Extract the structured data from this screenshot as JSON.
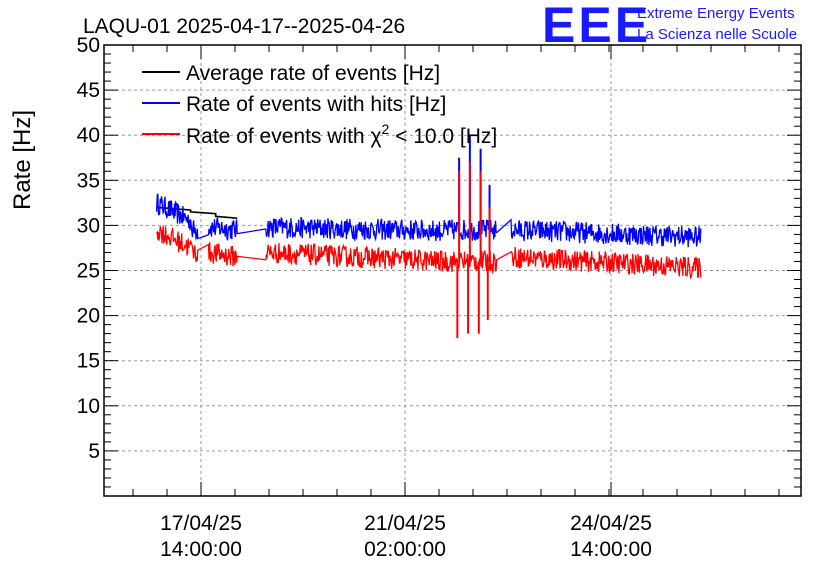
{
  "chart_data": {
    "type": "line",
    "title": "LAQU-01 2025-04-17--2025-04-26",
    "ylabel": "Rate [Hz]",
    "xlabel": "",
    "ylim": [
      0,
      50
    ],
    "y_ticks": [
      5,
      10,
      15,
      20,
      25,
      30,
      35,
      40,
      45,
      50
    ],
    "x_ticks": [
      {
        "label_top": "17/04/25",
        "label_bottom": "14:00:00"
      },
      {
        "label_top": "21/04/25",
        "label_bottom": "02:00:00"
      },
      {
        "label_top": "24/04/25",
        "label_bottom": "14:00:00"
      }
    ],
    "grid": true,
    "legend_position": "top-left",
    "legend": [
      {
        "label": "Average rate of events [Hz]",
        "color": "#000000"
      },
      {
        "label": "Rate of events with hits [Hz]",
        "color": "#0000ff"
      },
      {
        "label_prefix": "Rate of events with ",
        "label_symbol": "χ",
        "label_sup": "2",
        "label_suffix": " < 10.0 [Hz]",
        "color": "#ff0000"
      }
    ],
    "series": [
      {
        "name": "Average rate of events [Hz]",
        "color": "#000000",
        "segments": [
          {
            "x_start": 0.0,
            "x_end": 0.95,
            "value": 32.0,
            "trend": -0.3
          },
          {
            "x_start": 0.95,
            "x_end": 1.65,
            "value": 31.5,
            "trend": -0.2
          },
          {
            "x_start": 1.65,
            "x_end": 2.25,
            "value": 31.0,
            "trend": -0.2
          }
        ]
      },
      {
        "name": "Rate of events with hits [Hz]",
        "color": "#0000ff",
        "noise": 1.2,
        "segments": [
          {
            "x_start": 0.0,
            "x_end": 0.95,
            "value": 32.5,
            "trend": -2.0
          },
          {
            "x_start": 1.0,
            "x_end": 1.15,
            "value": 29.5,
            "trend": 0.0
          },
          {
            "x_start": 1.45,
            "x_end": 2.25,
            "value": 29.8,
            "trend": -0.3
          },
          {
            "x_start": 3.05,
            "x_end": 8.1,
            "value": 29.8,
            "trend": -0.4
          },
          {
            "x_start": 8.1,
            "x_end": 9.5,
            "value": 29.5,
            "trend": 0.0
          },
          {
            "x_start": 9.9,
            "x_end": 15.2,
            "value": 29.5,
            "trend": -0.8
          }
        ],
        "spikes": [
          {
            "x": 8.45,
            "value": 37.5
          },
          {
            "x": 8.75,
            "value": 40.0
          },
          {
            "x": 9.05,
            "value": 38.5
          },
          {
            "x": 9.3,
            "value": 34.5
          }
        ]
      },
      {
        "name": "Rate of events with χ² < 10.0 [Hz]",
        "color": "#ff0000",
        "noise": 1.2,
        "segments": [
          {
            "x_start": 0.0,
            "x_end": 0.95,
            "value": 29.5,
            "trend": -2.0
          },
          {
            "x_start": 1.0,
            "x_end": 1.15,
            "value": 27.0,
            "trend": 0.0
          },
          {
            "x_start": 1.45,
            "x_end": 2.25,
            "value": 27.0,
            "trend": -0.5
          },
          {
            "x_start": 3.05,
            "x_end": 8.1,
            "value": 27.0,
            "trend": -1.0
          },
          {
            "x_start": 8.1,
            "x_end": 9.5,
            "value": 26.0,
            "trend": 0.0
          },
          {
            "x_start": 9.9,
            "x_end": 15.2,
            "value": 26.5,
            "trend": -1.2
          }
        ],
        "spikes": [
          {
            "x": 8.45,
            "value": 36.0
          },
          {
            "x": 8.75,
            "value": 37.0
          },
          {
            "x": 9.05,
            "value": 36.0
          },
          {
            "x": 9.3,
            "value": 32.0
          }
        ],
        "dips": [
          {
            "x": 8.4,
            "value": 17.5
          },
          {
            "x": 8.7,
            "value": 18.0
          },
          {
            "x": 9.0,
            "value": 18.0
          },
          {
            "x": 9.25,
            "value": 19.5
          }
        ]
      }
    ]
  },
  "logo": {
    "mark": "EEE",
    "line1": "Extreme Energy Events",
    "line2": "La Scienza nelle Scuole"
  }
}
